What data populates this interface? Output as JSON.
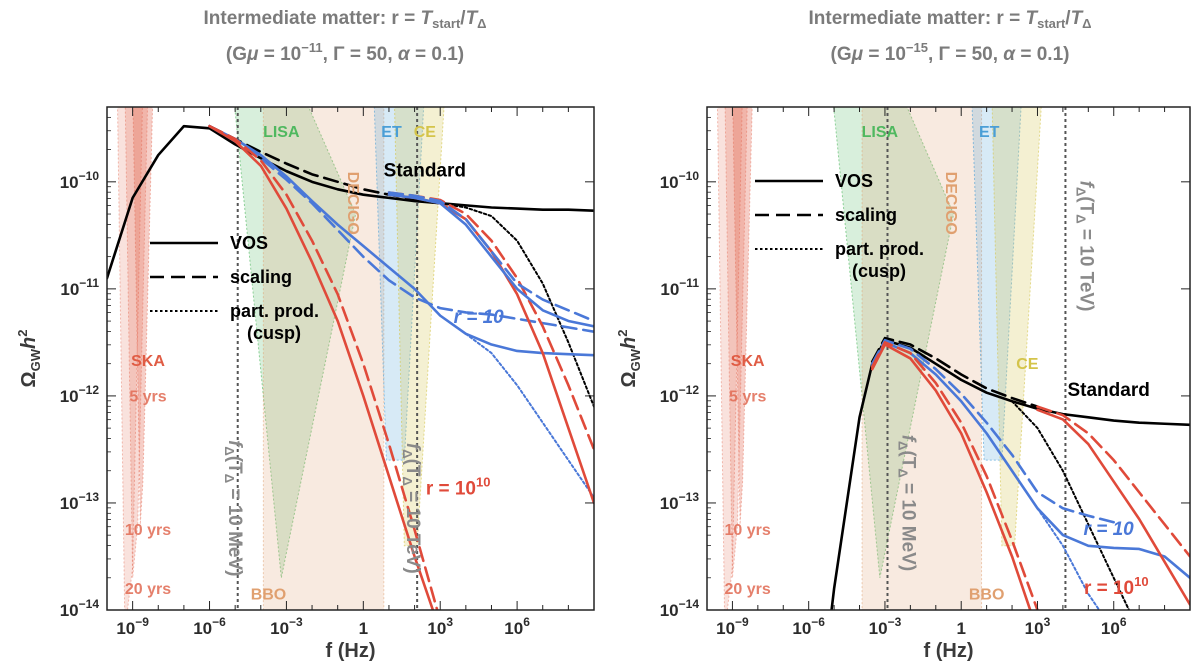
{
  "chart_data": [
    {
      "type": "line",
      "title_line1": "Intermediate matter: r = ",
      "title_T1": "T",
      "title_T1_sub": "start",
      "title_slash": "/",
      "title_T2": "T",
      "title_T2_sub": "Δ",
      "title_line2_pre": "(G",
      "title_mu": "μ",
      "title_line2_eq": " = 10",
      "title_exp": "−11",
      "title_line2_rest": ", Γ = 50, ",
      "title_alpha": "α",
      "title_line2_end": " = 0.1)",
      "xlabel": "f (Hz)",
      "ylabel": "Ω",
      "ylabel_sub": "GW",
      "ylabel_h": "h",
      "ylabel_sup": "2",
      "xscale": "log",
      "yscale": "log",
      "xlim": [
        1e-10,
        1000000000.0
      ],
      "ylim": [
        1e-14,
        5e-10
      ],
      "x_ticks": [
        {
          "b": "10",
          "e": "−9",
          "v": -9
        },
        {
          "b": "10",
          "e": "−6",
          "v": -6
        },
        {
          "b": "10",
          "e": "−3",
          "v": -3
        },
        {
          "b": "10",
          "e": "3",
          "v": 3
        },
        {
          "b": "10",
          "e": "6",
          "v": 6
        }
      ],
      "x_tick_one": {
        "label": "1",
        "v": 0
      },
      "y_ticks": [
        {
          "b": "10",
          "e": "−14",
          "v": -14
        },
        {
          "b": "10",
          "e": "−13",
          "v": -13
        },
        {
          "b": "10",
          "e": "−12",
          "v": -12
        },
        {
          "b": "10",
          "e": "−11",
          "v": -11
        },
        {
          "b": "10",
          "e": "−10",
          "v": -10
        }
      ],
      "detectors": [
        {
          "name": "SKA",
          "color": "#e05c44",
          "label_x": -8.4,
          "label_y": -11.72
        },
        {
          "name": "LISA",
          "color": "#4fb85f",
          "label_x": -3.2,
          "label_y": -9.58
        },
        {
          "name": "DECIGO",
          "color": "#e0a070",
          "label_x": -0.6,
          "label_y": -10.2
        },
        {
          "name": "ET",
          "color": "#4a9ed6",
          "label_x": 1.1,
          "label_y": -9.58
        },
        {
          "name": "CE",
          "color": "#d4c44a",
          "label_x": 2.4,
          "label_y": -9.58
        },
        {
          "name": "BBO",
          "color": "#e0a070",
          "label_x": -3.7,
          "label_y": -13.9
        }
      ],
      "ska_labels": [
        {
          "text": "5 yrs",
          "x": -8.4,
          "y": -12.05
        },
        {
          "text": "10 yrs",
          "x": -8.4,
          "y": -13.3
        },
        {
          "text": "20 yrs",
          "x": -8.4,
          "y": -13.85
        }
      ],
      "fdelta_lines": [
        {
          "x": -4.9,
          "label_pre": "f",
          "label_sub": "Δ",
          "label_mid": "(T",
          "label_sub2": "Δ",
          "label_post": " = 10 MeV)",
          "label_x": -5.25,
          "label_y": -13.05
        },
        {
          "x": 2.1,
          "label_pre": "f",
          "label_sub": "Δ",
          "label_mid": "(T",
          "label_sub2": "Δ",
          "label_post": " = 10 TeV)",
          "label_x": 1.7,
          "label_y": -13.05
        }
      ],
      "legend": [
        {
          "label": "VOS",
          "dash": "solid"
        },
        {
          "label": "scaling",
          "dash": "dashed"
        },
        {
          "label": "part. prod.",
          "dash": "dotted"
        },
        {
          "label": "(cusp)",
          "dash": "none"
        }
      ],
      "annotations": [
        {
          "text": "Standard",
          "color": "#000000",
          "x": 2.4,
          "y": -9.95
        },
        {
          "text": "r = 10",
          "color": "#4a78d8",
          "x": 4.5,
          "y": -11.32,
          "italic": true
        },
        {
          "text": "r = 10",
          "sup": "10",
          "color": "#e04a3a",
          "x": 3.7,
          "y": -12.92
        }
      ],
      "series": [
        {
          "name": "Standard VOS",
          "color": "#000000",
          "dash": "solid",
          "x": [
            -10,
            -9,
            -8,
            -7,
            -6,
            -5,
            -4,
            -3,
            -2,
            -1,
            0,
            1,
            2,
            3,
            4,
            5,
            6,
            7,
            8,
            9
          ],
          "y": [
            -10.9,
            -10.15,
            -9.75,
            -9.48,
            -9.5,
            -9.65,
            -9.78,
            -9.9,
            -10.0,
            -10.07,
            -10.12,
            -10.15,
            -10.18,
            -10.2,
            -10.22,
            -10.24,
            -10.25,
            -10.26,
            -10.26,
            -10.27
          ]
        },
        {
          "name": "Standard scaling",
          "color": "#000000",
          "dash": "dashed",
          "x": [
            -6,
            -5,
            -4,
            -3,
            -2,
            -1,
            0,
            1,
            2,
            3
          ],
          "y": [
            -9.48,
            -9.6,
            -9.72,
            -9.83,
            -9.93,
            -10.0,
            -10.07,
            -10.12,
            -10.16,
            -10.2
          ]
        },
        {
          "name": "Standard part. prod.",
          "color": "#000000",
          "dash": "dotted",
          "x": [
            3,
            4,
            5,
            6,
            7,
            8,
            9
          ],
          "y": [
            -10.2,
            -10.24,
            -10.32,
            -10.55,
            -10.95,
            -11.5,
            -12.1
          ]
        },
        {
          "name": "r = 10 VOS",
          "color": "#4a78d8",
          "dash": "solid",
          "x": [
            -6,
            -5,
            -4,
            -3,
            -2,
            -1,
            0,
            1,
            2,
            3,
            4,
            5,
            6,
            7,
            8,
            9
          ],
          "y": [
            -9.48,
            -9.6,
            -9.75,
            -9.95,
            -10.18,
            -10.4,
            -10.6,
            -10.8,
            -11.0,
            -11.25,
            -11.42,
            -11.52,
            -11.58,
            -11.6,
            -11.61,
            -11.62
          ]
        },
        {
          "name": "r = 10 scaling",
          "color": "#4a78d8",
          "dash": "dashed",
          "x": [
            -6,
            -5,
            -4,
            -3,
            -2,
            -1,
            0,
            1,
            2,
            3,
            4,
            5,
            6,
            7,
            8,
            9
          ],
          "y": [
            -9.48,
            -9.62,
            -9.78,
            -9.98,
            -10.2,
            -10.45,
            -10.7,
            -10.92,
            -11.08,
            -11.18,
            -11.22,
            -11.24,
            -11.28,
            -11.32,
            -11.36,
            -11.4
          ]
        },
        {
          "name": "r = 10 part. prod.",
          "color": "#4a78d8",
          "dash": "dotted",
          "x": [
            4,
            5,
            6,
            7,
            8,
            9
          ],
          "y": [
            -11.42,
            -11.6,
            -11.9,
            -12.25,
            -12.6,
            -12.95
          ]
        },
        {
          "name": "r = 10^10 VOS",
          "color": "#e04a3a",
          "dash": "solid",
          "x": [
            -6,
            -5,
            -4,
            -3,
            -2,
            -1,
            0,
            1,
            2,
            3
          ],
          "y": [
            -9.48,
            -9.62,
            -9.85,
            -10.25,
            -10.75,
            -11.3,
            -12.0,
            -12.75,
            -13.5,
            -14.2
          ]
        },
        {
          "name": "r = 10^10 scaling",
          "color": "#e04a3a",
          "dash": "dashed",
          "x": [
            -6,
            -5,
            -4,
            -3,
            -2,
            -1,
            0,
            1,
            2,
            3
          ],
          "y": [
            -9.48,
            -9.6,
            -9.8,
            -10.12,
            -10.55,
            -11.05,
            -11.7,
            -12.45,
            -13.25,
            -14.1
          ]
        },
        {
          "name": "upper red VOS",
          "color": "#e04a3a",
          "dash": "solid",
          "x": [
            1,
            2,
            3,
            4,
            5,
            6,
            7,
            8,
            9
          ],
          "y": [
            -10.12,
            -10.15,
            -10.2,
            -10.35,
            -10.65,
            -11.05,
            -11.6,
            -12.3,
            -13.0
          ]
        },
        {
          "name": "upper red scaling",
          "color": "#e04a3a",
          "dash": "dashed",
          "x": [
            1,
            2,
            3,
            4,
            5,
            6,
            7,
            8,
            9
          ],
          "y": [
            -10.1,
            -10.13,
            -10.17,
            -10.3,
            -10.55,
            -10.9,
            -11.35,
            -11.9,
            -12.5
          ]
        },
        {
          "name": "upper blue VOS",
          "color": "#4a78d8",
          "dash": "solid",
          "x": [
            1,
            2,
            3,
            4,
            5,
            6,
            7,
            8,
            9
          ],
          "y": [
            -10.12,
            -10.15,
            -10.2,
            -10.4,
            -10.7,
            -11.0,
            -11.2,
            -11.3,
            -11.35
          ]
        },
        {
          "name": "upper blue scaling",
          "color": "#4a78d8",
          "dash": "dashed",
          "x": [
            1,
            2,
            3,
            4,
            5,
            6,
            7,
            8,
            9
          ],
          "y": [
            -10.1,
            -10.13,
            -10.18,
            -10.35,
            -10.65,
            -10.95,
            -11.1,
            -11.2,
            -11.3
          ]
        }
      ]
    },
    {
      "type": "line",
      "title_line1": "Intermediate matter: r = ",
      "title_T1": "T",
      "title_T1_sub": "start",
      "title_slash": "/",
      "title_T2": "T",
      "title_T2_sub": "Δ",
      "title_line2_pre": "(G",
      "title_mu": "μ",
      "title_line2_eq": " = 10",
      "title_exp": "−15",
      "title_line2_rest": ", Γ = 50, ",
      "title_alpha": "α",
      "title_line2_end": " = 0.1)",
      "xlabel": "f (Hz)",
      "ylabel": "Ω",
      "ylabel_sub": "GW",
      "ylabel_h": "h",
      "ylabel_sup": "2",
      "xscale": "log",
      "yscale": "log",
      "xlim": [
        1e-10,
        1000000000.0
      ],
      "ylim": [
        1e-14,
        5e-10
      ],
      "x_ticks": [
        {
          "b": "10",
          "e": "−9",
          "v": -9
        },
        {
          "b": "10",
          "e": "−6",
          "v": -6
        },
        {
          "b": "10",
          "e": "−3",
          "v": -3
        },
        {
          "b": "10",
          "e": "3",
          "v": 3
        },
        {
          "b": "10",
          "e": "6",
          "v": 6
        }
      ],
      "x_tick_one": {
        "label": "1",
        "v": 0
      },
      "y_ticks": [
        {
          "b": "10",
          "e": "−14",
          "v": -14
        },
        {
          "b": "10",
          "e": "−13",
          "v": -13
        },
        {
          "b": "10",
          "e": "−12",
          "v": -12
        },
        {
          "b": "10",
          "e": "−11",
          "v": -11
        },
        {
          "b": "10",
          "e": "−10",
          "v": -10
        }
      ],
      "detectors": [
        {
          "name": "SKA",
          "color": "#e05c44",
          "label_x": -8.4,
          "label_y": -11.72
        },
        {
          "name": "LISA",
          "color": "#4fb85f",
          "label_x": -3.2,
          "label_y": -9.58
        },
        {
          "name": "DECIGO",
          "color": "#e0a070",
          "label_x": -0.6,
          "label_y": -10.2
        },
        {
          "name": "ET",
          "color": "#4a9ed6",
          "label_x": 1.1,
          "label_y": -9.58
        },
        {
          "name": "CE",
          "color": "#d4c44a",
          "label_x": 2.6,
          "label_y": -11.75
        },
        {
          "name": "BBO",
          "color": "#e0a070",
          "label_x": 1.0,
          "label_y": -13.9
        }
      ],
      "ska_labels": [
        {
          "text": "5 yrs",
          "x": -8.4,
          "y": -12.05
        },
        {
          "text": "10 yrs",
          "x": -8.4,
          "y": -13.3
        },
        {
          "text": "20 yrs",
          "x": -8.4,
          "y": -13.85
        }
      ],
      "fdelta_lines": [
        {
          "x": -2.9,
          "label_pre": "f",
          "label_sub": "Δ",
          "label_mid": "(T",
          "label_sub2": "Δ",
          "label_post": " = 10 MeV)",
          "label_x": -2.3,
          "label_y": -13.0
        },
        {
          "x": 4.1,
          "label_pre": "f",
          "label_sub": "Δ",
          "label_mid": "(T",
          "label_sub2": "Δ",
          "label_post": " = 10 TeV)",
          "label_x": 4.7,
          "label_y": -10.6
        }
      ],
      "legend": [
        {
          "label": "VOS",
          "dash": "solid"
        },
        {
          "label": "scaling",
          "dash": "dashed"
        },
        {
          "label": "part. prod.",
          "dash": "dotted"
        },
        {
          "label": "(cusp)",
          "dash": "none"
        }
      ],
      "annotations": [
        {
          "text": "Standard",
          "color": "#000000",
          "x": 5.8,
          "y": -12.0
        },
        {
          "text": "r = 10",
          "color": "#4a78d8",
          "x": 5.8,
          "y": -13.3,
          "italic": true
        },
        {
          "text": "r = 10",
          "sup": "10",
          "color": "#e04a3a",
          "x": 6.1,
          "y": -13.85
        }
      ],
      "series": [
        {
          "name": "Standard VOS",
          "color": "#000000",
          "dash": "solid",
          "x": [
            -5.2,
            -5,
            -4,
            -3.5,
            -3,
            -2,
            -1,
            0,
            1,
            2,
            3,
            4,
            5,
            6,
            7,
            8,
            9
          ],
          "y": [
            -14.2,
            -13.8,
            -12.2,
            -11.7,
            -11.48,
            -11.55,
            -11.7,
            -11.85,
            -11.97,
            -12.05,
            -12.12,
            -12.17,
            -12.2,
            -12.23,
            -12.25,
            -12.26,
            -12.27
          ]
        },
        {
          "name": "Standard scaling",
          "color": "#000000",
          "dash": "dashed",
          "x": [
            -3.5,
            -3,
            -2,
            -1,
            0,
            1,
            2,
            3
          ],
          "y": [
            -11.68,
            -11.46,
            -11.52,
            -11.65,
            -11.8,
            -11.93,
            -12.02,
            -12.1
          ]
        },
        {
          "name": "Standard part. prod.",
          "color": "#000000",
          "dash": "dotted",
          "x": [
            2,
            3,
            4,
            5,
            6,
            7
          ],
          "y": [
            -12.05,
            -12.3,
            -12.7,
            -13.2,
            -13.7,
            -14.2
          ]
        },
        {
          "name": "r = 10 VOS",
          "color": "#4a78d8",
          "dash": "solid",
          "x": [
            -3.5,
            -3,
            -2,
            -1,
            0,
            1,
            2,
            3,
            4,
            5,
            6,
            7,
            8,
            9
          ],
          "y": [
            -11.72,
            -11.5,
            -11.6,
            -11.8,
            -12.05,
            -12.35,
            -12.7,
            -13.05,
            -13.3,
            -13.4,
            -13.42,
            -13.43,
            -13.5,
            -13.7
          ]
        },
        {
          "name": "r = 10 scaling",
          "color": "#4a78d8",
          "dash": "dashed",
          "x": [
            -3.5,
            -3,
            -2,
            -1,
            0,
            1,
            2,
            3,
            4,
            5,
            6
          ],
          "y": [
            -11.7,
            -11.48,
            -11.56,
            -11.75,
            -11.98,
            -12.25,
            -12.55,
            -12.9,
            -13.05,
            -13.12,
            -13.18
          ]
        },
        {
          "name": "r = 10 part. prod.",
          "color": "#4a78d8",
          "dash": "dotted",
          "x": [
            3,
            4,
            5,
            6
          ],
          "y": [
            -13.05,
            -13.4,
            -13.85,
            -14.2
          ]
        },
        {
          "name": "r = 10^10 VOS",
          "color": "#e04a3a",
          "dash": "solid",
          "x": [
            -3.5,
            -3,
            -2,
            -1,
            0,
            1,
            2,
            3
          ],
          "y": [
            -11.75,
            -11.52,
            -11.65,
            -11.95,
            -12.35,
            -12.9,
            -13.5,
            -14.2
          ]
        },
        {
          "name": "r = 10^10 scaling",
          "color": "#e04a3a",
          "dash": "dashed",
          "x": [
            -3.5,
            -3,
            -2,
            -1,
            0,
            1,
            2,
            3
          ],
          "y": [
            -11.73,
            -11.5,
            -11.6,
            -11.88,
            -12.25,
            -12.75,
            -13.35,
            -14.0
          ]
        },
        {
          "name": "upper red VOS",
          "color": "#e04a3a",
          "dash": "solid",
          "x": [
            3,
            4,
            5,
            6,
            7,
            8,
            9
          ],
          "y": [
            -12.13,
            -12.22,
            -12.45,
            -12.8,
            -13.15,
            -13.55,
            -13.95
          ]
        },
        {
          "name": "upper red scaling",
          "color": "#e04a3a",
          "dash": "dashed",
          "x": [
            3,
            4,
            5,
            6,
            7,
            8,
            9
          ],
          "y": [
            -12.1,
            -12.18,
            -12.35,
            -12.6,
            -12.9,
            -13.2,
            -13.5
          ]
        }
      ]
    }
  ]
}
